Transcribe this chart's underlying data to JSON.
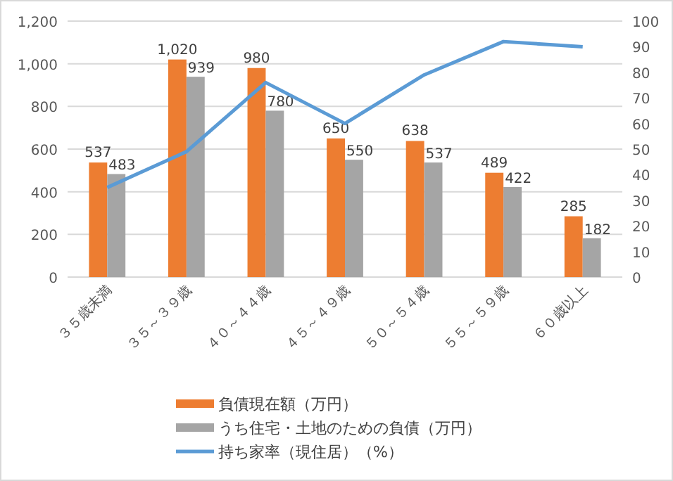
{
  "chart_data": {
    "type": "bar",
    "categories": [
      "３５歳未満",
      "３５～３９歳",
      "４０～４４歳",
      "４５～４９歳",
      "５０～５４歳",
      "５５～５９歳",
      "６０歳以上"
    ],
    "series": [
      {
        "name": "負債現在額（万円）",
        "color": "#ed7d31",
        "values": [
          537,
          1020,
          980,
          650,
          638,
          489,
          285
        ],
        "value_labels": [
          "537",
          "1,020",
          "980",
          "650",
          "638",
          "489",
          "285"
        ]
      },
      {
        "name": "うち住宅・土地のための負債（万円）",
        "color": "#a5a5a5",
        "values": [
          483,
          939,
          780,
          550,
          537,
          422,
          182
        ],
        "value_labels": [
          "483",
          "939",
          "780",
          "550",
          "537",
          "422",
          "182"
        ]
      },
      {
        "name": "持ち家率（現住居）（%）",
        "color": "#5b9bd5",
        "type": "line",
        "axis": "y2",
        "values": [
          35,
          49,
          76,
          60,
          79,
          92,
          90
        ]
      }
    ],
    "ylim": [
      0,
      1200
    ],
    "yticks": [
      0,
      200,
      400,
      600,
      800,
      {
        "value": 1000,
        "label": "1,000"
      },
      {
        "value": 1200,
        "label": "1,200"
      }
    ],
    "y2lim": [
      0,
      100
    ],
    "y2ticks": [
      0,
      10,
      20,
      30,
      40,
      50,
      60,
      70,
      80,
      90,
      100
    ],
    "grid": "y",
    "legend": "bottom",
    "marker": "none"
  }
}
